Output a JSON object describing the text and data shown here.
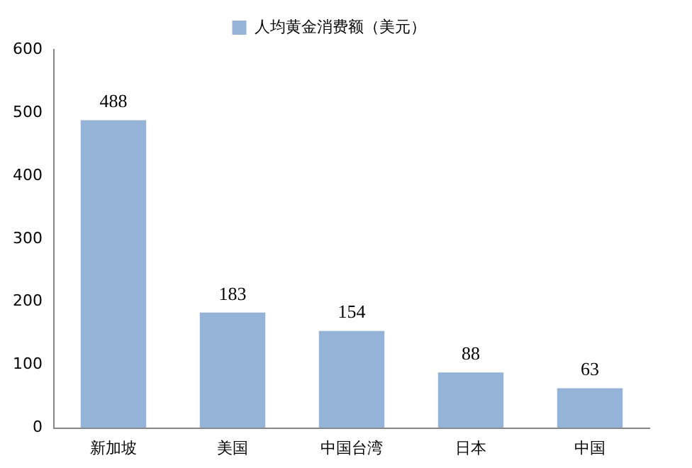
{
  "chart_data": {
    "type": "bar",
    "categories": [
      "新加坡",
      "美国",
      "中国台湾",
      "日本",
      "中国"
    ],
    "series": [
      {
        "name": "人均黄金消费额（美元）",
        "color": "#95b3d7",
        "values": [
          488,
          183,
          154,
          88,
          63
        ]
      }
    ],
    "ylim": [
      0,
      600
    ],
    "yticks": [
      0,
      100,
      200,
      300,
      400,
      500,
      600
    ],
    "grid": false,
    "legend": "top",
    "data_labels": true
  }
}
